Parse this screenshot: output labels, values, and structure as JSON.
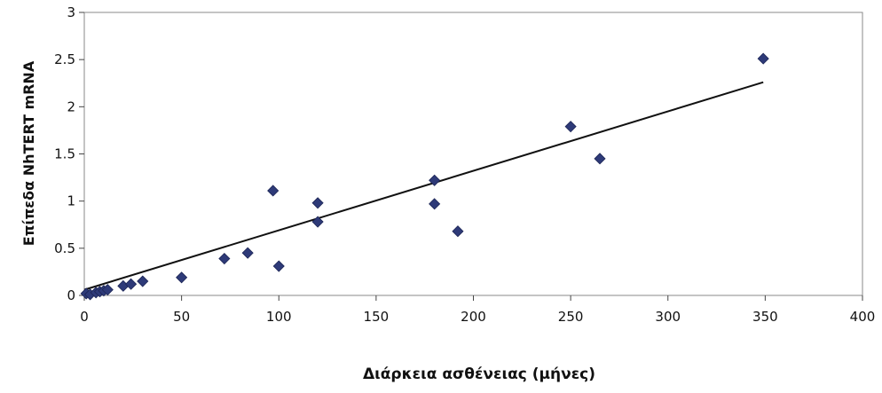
{
  "chart_data": {
    "type": "scatter",
    "title": "",
    "xlabel": "Διάρκεια ασθένειας (μήνες)",
    "ylabel": "Επίπεδα NhTERT mRNA",
    "xlim": [
      0,
      400
    ],
    "ylim": [
      0,
      3
    ],
    "x_ticks": [
      0,
      50,
      100,
      150,
      200,
      250,
      300,
      350,
      400
    ],
    "y_ticks": [
      0,
      0.5,
      1,
      1.5,
      2,
      2.5,
      3
    ],
    "x_tick_labels": [
      "0",
      "50",
      "100",
      "150",
      "200",
      "250",
      "300",
      "350",
      "400"
    ],
    "y_tick_labels": [
      "0",
      "0.5",
      "1",
      "1.5",
      "2",
      "2.5",
      "3"
    ],
    "grid": false,
    "marker_color": "#2e3a78",
    "trendline_color": "#111111",
    "points": [
      {
        "x": 1,
        "y": 0.02
      },
      {
        "x": 3,
        "y": 0.01
      },
      {
        "x": 6,
        "y": 0.03
      },
      {
        "x": 8,
        "y": 0.04
      },
      {
        "x": 10,
        "y": 0.05
      },
      {
        "x": 12,
        "y": 0.06
      },
      {
        "x": 20,
        "y": 0.1
      },
      {
        "x": 24,
        "y": 0.12
      },
      {
        "x": 30,
        "y": 0.15
      },
      {
        "x": 50,
        "y": 0.19
      },
      {
        "x": 72,
        "y": 0.39
      },
      {
        "x": 84,
        "y": 0.45
      },
      {
        "x": 97,
        "y": 1.11
      },
      {
        "x": 100,
        "y": 0.31
      },
      {
        "x": 120,
        "y": 0.98
      },
      {
        "x": 120,
        "y": 0.78
      },
      {
        "x": 180,
        "y": 1.22
      },
      {
        "x": 180,
        "y": 0.97
      },
      {
        "x": 192,
        "y": 0.68
      },
      {
        "x": 250,
        "y": 1.79
      },
      {
        "x": 265,
        "y": 1.45
      },
      {
        "x": 349,
        "y": 2.51
      }
    ],
    "trendline": {
      "x": [
        0,
        349
      ],
      "y": [
        0.06,
        2.26
      ]
    }
  }
}
